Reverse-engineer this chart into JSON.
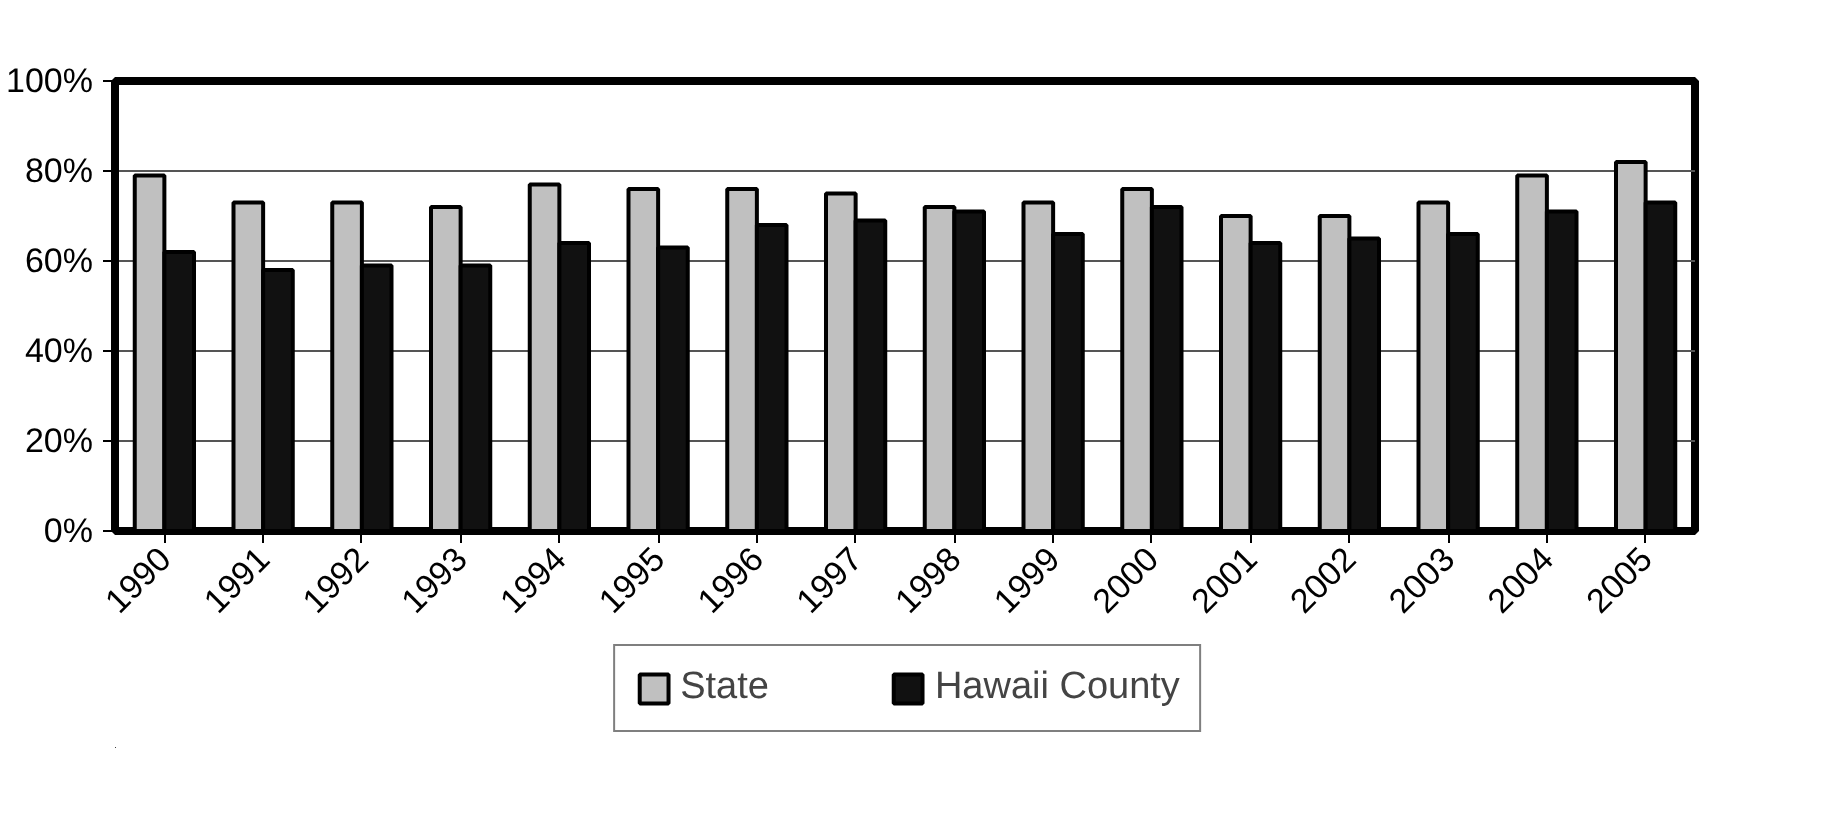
{
  "chart_data": {
    "type": "bar",
    "categories": [
      "1990",
      "1991",
      "1992",
      "1993",
      "1994",
      "1995",
      "1996",
      "1997",
      "1998",
      "1999",
      "2000",
      "2001",
      "2002",
      "2003",
      "2004",
      "2005"
    ],
    "series": [
      {
        "name": "State",
        "color": "#c0c0c0",
        "values": [
          79,
          73,
          73,
          72,
          77,
          76,
          76,
          75,
          72,
          73,
          76,
          70,
          70,
          73,
          79,
          82
        ]
      },
      {
        "name": "Hawaii County",
        "color": "#111111",
        "values": [
          62,
          58,
          59,
          59,
          64,
          63,
          68,
          69,
          71,
          66,
          72,
          64,
          65,
          66,
          71,
          73
        ]
      }
    ],
    "ylim": [
      0,
      100
    ],
    "yticks": [
      {
        "value": 0,
        "label": "0%"
      },
      {
        "value": 20,
        "label": "20%"
      },
      {
        "value": 40,
        "label": "40%"
      },
      {
        "value": 60,
        "label": "60%"
      },
      {
        "value": 80,
        "label": "80%"
      },
      {
        "value": 100,
        "label": "100%"
      }
    ],
    "grid": "y",
    "legend": "bottom"
  }
}
